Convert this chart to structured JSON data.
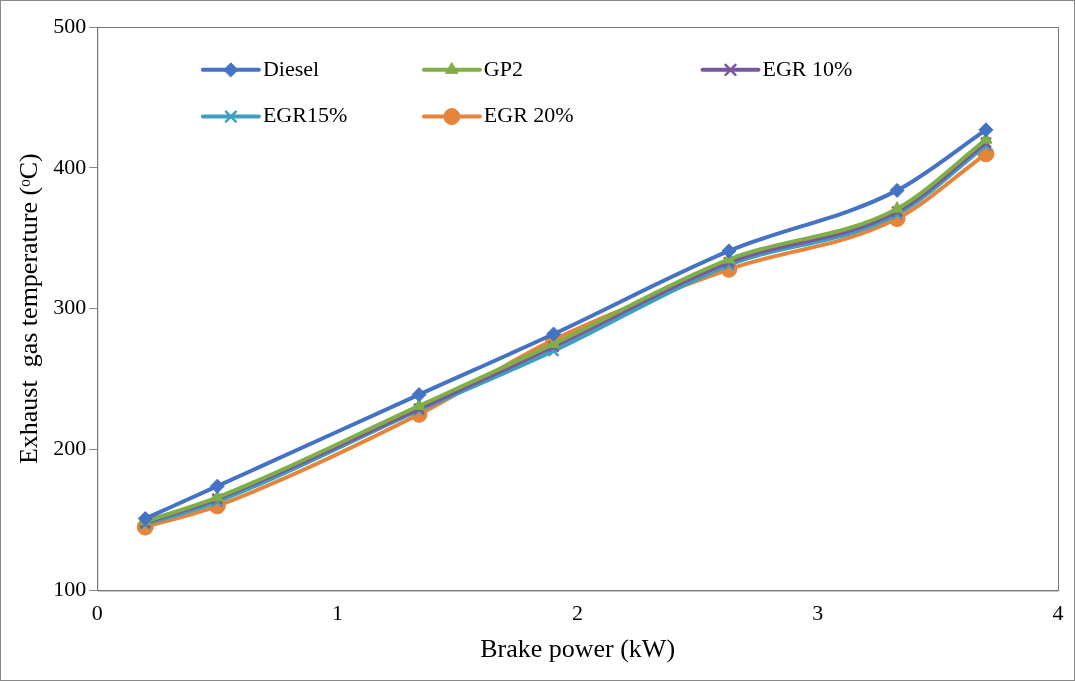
{
  "chart_data": {
    "type": "line",
    "xlabel": "Brake power (kW)",
    "ylabel": "Exhaust  gas temperature (ᵒC)",
    "x": [
      0.2,
      0.5,
      1.34,
      1.9,
      2.63,
      3.33,
      3.7
    ],
    "series": [
      {
        "name": "Diesel",
        "color": "#4472c4",
        "marker": "diamond",
        "values": [
          151,
          174,
          239,
          282,
          341,
          384,
          427
        ]
      },
      {
        "name": "GP2",
        "color": "#7faf45",
        "marker": "triangle",
        "values": [
          149,
          166,
          231,
          275,
          335,
          371,
          420
        ]
      },
      {
        "name": "EGR 10%",
        "color": "#7a55a0",
        "marker": "cross",
        "values": [
          148,
          165,
          229,
          273,
          333,
          369,
          418
        ]
      },
      {
        "name": "EGR15%",
        "color": "#3f9fbe",
        "marker": "cross",
        "values": [
          147,
          163,
          228,
          270,
          331,
          367,
          416
        ]
      },
      {
        "name": "EGR 20%",
        "color": "#e5843b",
        "marker": "circle",
        "values": [
          145,
          160,
          225,
          278,
          328,
          364,
          410
        ]
      }
    ],
    "xlim": [
      0,
      4
    ],
    "xticks": [
      0,
      1,
      2,
      3,
      4
    ],
    "ylim": [
      100,
      500
    ],
    "yticks": [
      100,
      200,
      300,
      400,
      500
    ],
    "grid": false,
    "legend": "top",
    "line_style": "solid"
  }
}
